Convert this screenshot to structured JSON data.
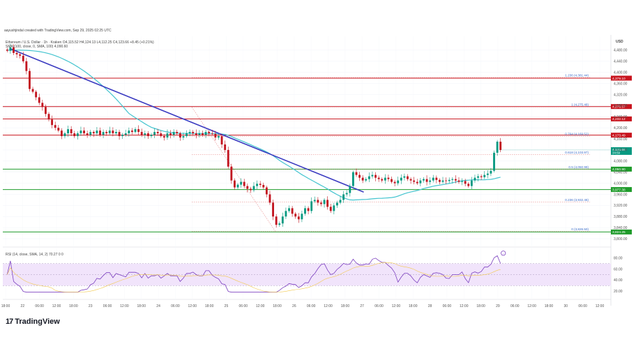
{
  "header": {
    "created_by": "aayushjindal created with TradingView.com, Sep 29, 2025 02:25 UTC",
    "symbol_line": "Ethereum / U.S. Dollar · 1h · Kraken  O4,115.52  H4,124.13  L4,112.25  C4,123.66  +8.45 (+0.21%)",
    "sma_line": "SMA (100, close, 0, SMA, 100)  4,090.60",
    "rsi_line": "RSI (14, close, SMA, 14, 2)  70.27  0  0",
    "currency": "USD"
  },
  "branding": {
    "logo_text": "TradingView",
    "logo_mark": "17"
  },
  "colors": {
    "candle_up": "#089981",
    "candle_down": "#c2141f",
    "sma": "#44c4cf",
    "trendline": "#3a3ac0",
    "red_level": "#c8141e",
    "green_level": "#1f9b2b",
    "fib": "#e05858",
    "rsi_line": "#7b3fbf",
    "rsi_band": "#f1e4fb"
  },
  "chart_data": {
    "type": "candlestick",
    "title": "Ethereum / U.S. Dollar · 1h · Kraken",
    "ylabel": "USD",
    "ylim": [
      3780,
      4520
    ],
    "y_ticks": [
      "4,480.00",
      "4,440.00",
      "4,400.00",
      "4,360.00",
      "4,320.00",
      "4,280.00",
      "4,240.00",
      "4,200.00",
      "4,160.00",
      "4,120.00",
      "4,080.00",
      "4,040.00",
      "4,000.00",
      "3,960.00",
      "3,920.00",
      "3,880.00",
      "3,840.00",
      "3,800.00"
    ],
    "y_tick_values": [
      4480,
      4440,
      4400,
      4360,
      4320,
      4280,
      4240,
      4200,
      4160,
      4120,
      4080,
      4040,
      4000,
      3960,
      3920,
      3880,
      3840,
      3800
    ],
    "x_tick_labels": [
      "18:00",
      "22",
      "06:00",
      "12:00",
      "18:00",
      "23",
      "06:00",
      "12:00",
      "18:00",
      "24",
      "06:00",
      "12:00",
      "18:00",
      "25",
      "06:00",
      "12:00",
      "18:00",
      "26",
      "06:00",
      "12:00",
      "18:00",
      "27",
      "06:00",
      "12:00",
      "18:00",
      "28",
      "06:00",
      "12:00",
      "18:00",
      "29",
      "06:00",
      "12:00",
      "18:00",
      "30",
      "06:00",
      "12:00"
    ],
    "closes": [
      4478,
      4490,
      4470,
      4465,
      4460,
      4440,
      4405,
      4340,
      4330,
      4310,
      4290,
      4275,
      4250,
      4230,
      4210,
      4200,
      4190,
      4170,
      4180,
      4195,
      4180,
      4170,
      4180,
      4190,
      4180,
      4175,
      4185,
      4180,
      4190,
      4175,
      4185,
      4180,
      4190,
      4180,
      4185,
      4170,
      4175,
      4180,
      4190,
      4185,
      4195,
      4185,
      4175,
      4180,
      4170,
      4175,
      4185,
      4180,
      4170,
      4165,
      4180,
      4175,
      4185,
      4180,
      4165,
      4170,
      4180,
      4185,
      4180,
      4175,
      4180,
      4175,
      4185,
      4180,
      4178,
      4165,
      4170,
      4140,
      4120,
      4060,
      4010,
      3985,
      3995,
      4005,
      3990,
      3980,
      3975,
      3990,
      3998,
      3994,
      3985,
      3960,
      3930,
      3880,
      3850,
      3855,
      3880,
      3900,
      3910,
      3890,
      3880,
      3870,
      3890,
      3910,
      3900,
      3935,
      3940,
      3930,
      3925,
      3940,
      3915,
      3900,
      3920,
      3930,
      3940,
      3960,
      3965,
      3990,
      4040,
      4030,
      4020,
      4010,
      4015,
      4025,
      4030,
      4020,
      4015,
      4010,
      4020,
      4015,
      4005,
      4000,
      4010,
      4020,
      4025,
      4015,
      4010,
      4005,
      4000,
      4010,
      4015,
      4005,
      4010,
      4020,
      4012,
      4005,
      4010,
      4008,
      4012,
      4015,
      4010,
      4005,
      4008,
      3998,
      3990,
      4010,
      4020,
      4025,
      4022,
      4030,
      4035,
      4045,
      4110,
      4150,
      4120
    ],
    "sma_100": {
      "label": "SMA (100, close, 0, SMA, 100)",
      "last": 4090.6
    },
    "trendline": {
      "from": {
        "date": "Sep 22 00:00",
        "price": 4485
      },
      "to": {
        "date": "Sep 27 00:00",
        "price": 3968
      }
    },
    "horizontal_levels": [
      {
        "price": 4379.1,
        "label": "4,379.10",
        "color": "red"
      },
      {
        "price": 4276.57,
        "label": "4,276.57",
        "color": "red"
      },
      {
        "price": 4232.12,
        "label": "4,232.12",
        "color": "red"
      },
      {
        "price": 4173.49,
        "label": "4,173.49",
        "color": "red"
      },
      {
        "price": 4050.9,
        "label": "4,050.90",
        "color": "green"
      },
      {
        "price": 3977.38,
        "label": "3,977.38",
        "color": "green"
      },
      {
        "price": 3824.25,
        "label": "3,824.25",
        "color": "green"
      }
    ],
    "fib_levels": [
      {
        "label": "1.236 (4,381.44)",
        "price": 4381.44
      },
      {
        "label": "1 (4,275.48)",
        "price": 4275.48
      },
      {
        "label": "0.764 (4,169.52)",
        "price": 4169.52
      },
      {
        "label": "0.618 (4,103.97)",
        "price": 4103.97
      },
      {
        "label": "0.5 (4,050.99)",
        "price": 4050.99
      },
      {
        "label": "0.236 (3,932.46)",
        "price": 3932.46
      },
      {
        "label": "0 (3,826.50)",
        "price": 3826.5
      }
    ],
    "current_price": {
      "label": "4,123.66",
      "countdown": "34:59"
    },
    "rsi": {
      "label": "RSI (14, close, SMA, 14, 2)",
      "value": 70.27,
      "ylim": [
        10,
        90
      ],
      "y_ticks": [
        "80.00",
        "60.00",
        "40.00",
        "20.00"
      ],
      "y_tick_values": [
        80,
        60,
        40,
        20
      ],
      "band": [
        30,
        70
      ],
      "marker": "alert-icon"
    }
  }
}
